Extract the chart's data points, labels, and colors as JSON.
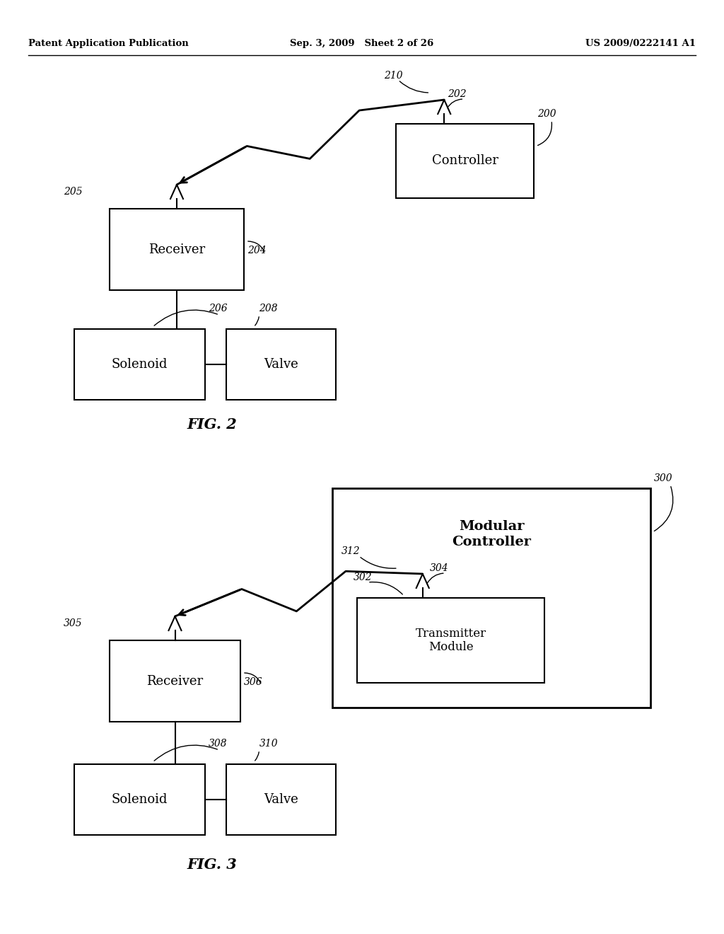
{
  "bg_color": "#ffffff",
  "header_left": "Patent Application Publication",
  "header_mid": "Sep. 3, 2009   Sheet 2 of 26",
  "header_right": "US 2009/0222141 A1",
  "fig2_label": "FIG. 2",
  "fig3_label": "FIG. 3"
}
